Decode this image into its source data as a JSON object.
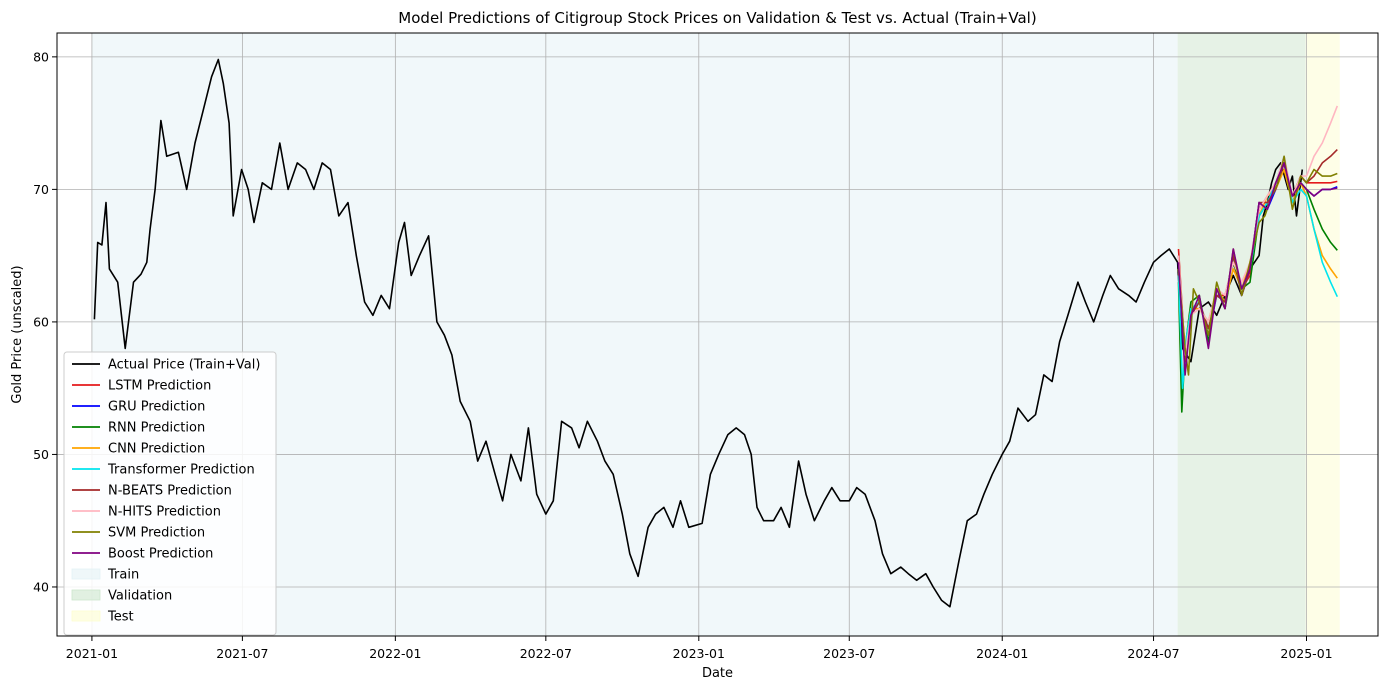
{
  "chart_data": {
    "type": "line",
    "title": "Model Predictions of Citigroup Stock Prices on Validation & Test vs. Actual (Train+Val)",
    "xlabel": "Date",
    "ylabel": "Gold Price (unscaled)",
    "xlim": [
      "2020-11-20",
      "2025-03-28"
    ],
    "ylim": [
      36.3,
      81.8
    ],
    "grid": true,
    "legend_position": "lower-left",
    "x_ticks": [
      "2021-01",
      "2021-07",
      "2022-01",
      "2022-07",
      "2023-01",
      "2023-07",
      "2024-01",
      "2024-07",
      "2025-01"
    ],
    "y_ticks": [
      40,
      50,
      60,
      70,
      80
    ],
    "regions": [
      {
        "name": "Train",
        "start": "2021-01-01",
        "end": "2024-07-30",
        "color": "#e4f2f5"
      },
      {
        "name": "Validation",
        "start": "2024-07-30",
        "end": "2024-12-31",
        "color": "#cde6cd"
      },
      {
        "name": "Test",
        "start": "2024-12-31",
        "end": "2025-02-10",
        "color": "#fdfdd0"
      }
    ],
    "series": [
      {
        "name": "Actual Price (Train+Val)",
        "color": "#000000",
        "x": [
          "2021-01-04",
          "2021-01-08",
          "2021-01-13",
          "2021-01-18",
          "2021-01-22",
          "2021-02-01",
          "2021-02-10",
          "2021-02-20",
          "2021-03-01",
          "2021-03-08",
          "2021-03-12",
          "2021-03-18",
          "2021-03-25",
          "2021-04-01",
          "2021-04-15",
          "2021-04-25",
          "2021-05-05",
          "2021-05-15",
          "2021-05-25",
          "2021-06-02",
          "2021-06-08",
          "2021-06-15",
          "2021-06-20",
          "2021-06-30",
          "2021-07-08",
          "2021-07-15",
          "2021-07-25",
          "2021-08-05",
          "2021-08-15",
          "2021-08-25",
          "2021-09-05",
          "2021-09-15",
          "2021-09-25",
          "2021-10-05",
          "2021-10-15",
          "2021-10-25",
          "2021-11-05",
          "2021-11-15",
          "2021-11-25",
          "2021-12-05",
          "2021-12-15",
          "2021-12-25",
          "2022-01-05",
          "2022-01-12",
          "2022-01-20",
          "2022-01-30",
          "2022-02-10",
          "2022-02-20",
          "2022-03-01",
          "2022-03-10",
          "2022-03-20",
          "2022-04-01",
          "2022-04-10",
          "2022-04-20",
          "2022-05-01",
          "2022-05-10",
          "2022-05-20",
          "2022-06-01",
          "2022-06-10",
          "2022-06-20",
          "2022-07-01",
          "2022-07-10",
          "2022-07-20",
          "2022-08-01",
          "2022-08-10",
          "2022-08-20",
          "2022-09-01",
          "2022-09-10",
          "2022-09-20",
          "2022-10-01",
          "2022-10-10",
          "2022-10-20",
          "2022-11-01",
          "2022-11-10",
          "2022-11-20",
          "2022-12-01",
          "2022-12-10",
          "2022-12-20",
          "2023-01-05",
          "2023-01-15",
          "2023-01-25",
          "2023-02-05",
          "2023-02-15",
          "2023-02-25",
          "2023-03-05",
          "2023-03-12",
          "2023-03-20",
          "2023-04-01",
          "2023-04-10",
          "2023-04-20",
          "2023-05-01",
          "2023-05-10",
          "2023-05-20",
          "2023-06-01",
          "2023-06-10",
          "2023-06-20",
          "2023-07-01",
          "2023-07-10",
          "2023-07-20",
          "2023-08-01",
          "2023-08-10",
          "2023-08-20",
          "2023-09-01",
          "2023-09-10",
          "2023-09-20",
          "2023-10-01",
          "2023-10-10",
          "2023-10-20",
          "2023-10-30",
          "2023-11-10",
          "2023-11-20",
          "2023-12-01",
          "2023-12-10",
          "2023-12-20",
          "2024-01-01",
          "2024-01-10",
          "2024-01-20",
          "2024-02-01",
          "2024-02-10",
          "2024-02-20",
          "2024-03-01",
          "2024-03-10",
          "2024-03-20",
          "2024-04-01",
          "2024-04-10",
          "2024-04-20",
          "2024-05-01",
          "2024-05-10",
          "2024-05-20",
          "2024-06-01",
          "2024-06-10",
          "2024-06-20",
          "2024-07-01",
          "2024-07-10",
          "2024-07-20",
          "2024-07-30",
          "2024-08-05",
          "2024-08-15",
          "2024-08-25",
          "2024-09-05",
          "2024-09-15",
          "2024-09-25",
          "2024-10-05",
          "2024-10-15",
          "2024-10-25",
          "2024-11-05",
          "2024-11-10",
          "2024-11-15",
          "2024-11-20",
          "2024-11-25",
          "2024-12-01",
          "2024-12-10",
          "2024-12-15",
          "2024-12-20",
          "2024-12-27"
        ],
        "values": [
          60.2,
          66.0,
          65.8,
          69.0,
          64.0,
          63.0,
          58.0,
          63.0,
          63.6,
          64.5,
          67.0,
          70.0,
          75.2,
          72.5,
          72.8,
          70.0,
          73.5,
          76.0,
          78.5,
          79.8,
          78.0,
          75.0,
          68.0,
          71.5,
          70.0,
          67.5,
          70.5,
          70.0,
          73.5,
          70.0,
          72.0,
          71.5,
          70.0,
          72.0,
          71.5,
          68.0,
          69.0,
          65.0,
          61.5,
          60.5,
          62.0,
          61.0,
          66.0,
          67.5,
          63.5,
          65.0,
          66.5,
          60.0,
          59.0,
          57.5,
          54.0,
          52.5,
          49.5,
          51.0,
          48.5,
          46.5,
          50.0,
          48.0,
          52.0,
          47.0,
          45.5,
          46.5,
          52.5,
          52.0,
          50.5,
          52.5,
          51.0,
          49.5,
          48.5,
          45.5,
          42.5,
          40.8,
          44.5,
          45.5,
          46.0,
          44.5,
          46.5,
          44.5,
          44.8,
          48.5,
          50.0,
          51.5,
          52.0,
          51.5,
          50.0,
          46.0,
          45.0,
          45.0,
          46.0,
          44.5,
          49.5,
          47.0,
          45.0,
          46.5,
          47.5,
          46.5,
          46.5,
          47.5,
          47.0,
          45.0,
          42.5,
          41.0,
          41.5,
          41.0,
          40.5,
          41.0,
          40.0,
          39.0,
          38.5,
          42.0,
          45.0,
          45.5,
          47.0,
          48.5,
          50.0,
          51.0,
          53.5,
          52.5,
          53.0,
          56.0,
          55.5,
          58.5,
          60.5,
          63.0,
          61.5,
          60.0,
          62.0,
          63.5,
          62.5,
          62.0,
          61.5,
          63.0,
          64.5,
          65.0,
          65.5,
          64.5,
          58.0,
          57.0,
          61.0,
          61.5,
          60.5,
          62.0,
          63.5,
          62.0,
          64.0,
          65.0,
          68.0,
          69.0,
          70.5,
          71.5,
          72.0,
          70.0,
          71.0,
          68.0,
          71.5
        ]
      },
      {
        "name": "LSTM Prediction",
        "color": "#e41a1c",
        "x": [
          "2024-07-31",
          "2024-08-08",
          "2024-08-15",
          "2024-08-25",
          "2024-09-05",
          "2024-09-15",
          "2024-09-25",
          "2024-10-05",
          "2024-10-15",
          "2024-10-25",
          "2024-11-05",
          "2024-11-15",
          "2024-11-25",
          "2024-12-05",
          "2024-12-15",
          "2024-12-25",
          "2025-01-01",
          "2025-01-10",
          "2025-01-20",
          "2025-01-30",
          "2025-02-07"
        ],
        "values": [
          65.5,
          57.5,
          61.0,
          61.0,
          60.0,
          62.0,
          62.0,
          64.5,
          62.5,
          63.5,
          68.5,
          69.5,
          70.5,
          72.0,
          69.5,
          71.0,
          70.5,
          70.5,
          70.5,
          70.5,
          70.6
        ]
      },
      {
        "name": "GRU Prediction",
        "color": "#0000ff",
        "x": [
          "2024-07-31",
          "2024-08-08",
          "2024-08-15",
          "2024-08-25",
          "2024-09-05",
          "2024-09-15",
          "2024-09-25",
          "2024-10-05",
          "2024-10-15",
          "2024-10-25",
          "2024-11-05",
          "2024-11-15",
          "2024-11-25",
          "2024-12-05",
          "2024-12-15",
          "2024-12-25",
          "2025-01-01",
          "2025-01-10",
          "2025-01-20",
          "2025-01-30",
          "2025-02-07"
        ],
        "values": [
          64.5,
          56.5,
          60.5,
          61.5,
          59.0,
          62.0,
          61.5,
          65.0,
          62.0,
          64.0,
          69.0,
          68.5,
          70.0,
          72.0,
          69.0,
          70.5,
          70.0,
          69.5,
          70.0,
          70.0,
          70.2
        ]
      },
      {
        "name": "RNN Prediction",
        "color": "#008000",
        "x": [
          "2024-07-31",
          "2024-08-04",
          "2024-08-08",
          "2024-08-15",
          "2024-08-25",
          "2024-09-05",
          "2024-09-15",
          "2024-09-25",
          "2024-10-05",
          "2024-10-15",
          "2024-10-25",
          "2024-11-05",
          "2024-11-15",
          "2024-11-25",
          "2024-12-05",
          "2024-12-15",
          "2024-12-25",
          "2025-01-01",
          "2025-01-10",
          "2025-01-20",
          "2025-01-30",
          "2025-02-07"
        ],
        "values": [
          63.0,
          53.2,
          58.0,
          61.5,
          62.0,
          58.5,
          62.5,
          61.0,
          64.5,
          62.5,
          63.0,
          68.0,
          69.0,
          70.5,
          72.0,
          69.0,
          70.5,
          70.0,
          68.5,
          67.0,
          66.0,
          65.4
        ]
      },
      {
        "name": "CNN Prediction",
        "color": "#ffa500",
        "x": [
          "2024-07-31",
          "2024-08-08",
          "2024-08-15",
          "2024-08-25",
          "2024-09-05",
          "2024-09-15",
          "2024-09-25",
          "2024-10-05",
          "2024-10-15",
          "2024-10-25",
          "2024-11-05",
          "2024-11-15",
          "2024-11-25",
          "2024-12-05",
          "2024-12-15",
          "2024-12-25",
          "2025-01-01",
          "2025-01-10",
          "2025-01-20",
          "2025-01-30",
          "2025-02-07"
        ],
        "values": [
          64.0,
          58.0,
          61.0,
          61.0,
          60.0,
          62.5,
          61.5,
          64.0,
          62.5,
          64.5,
          68.0,
          69.5,
          70.0,
          71.5,
          69.0,
          70.5,
          69.5,
          67.0,
          65.0,
          64.0,
          63.3
        ]
      },
      {
        "name": "Transformer Prediction",
        "color": "#00e5ee",
        "x": [
          "2024-07-31",
          "2024-08-05",
          "2024-08-10",
          "2024-08-15",
          "2024-08-25",
          "2024-09-05",
          "2024-09-15",
          "2024-09-25",
          "2024-10-05",
          "2024-10-15",
          "2024-10-25",
          "2024-11-05",
          "2024-11-15",
          "2024-11-25",
          "2024-12-05",
          "2024-12-15",
          "2024-12-25",
          "2025-01-01",
          "2025-01-10",
          "2025-01-20",
          "2025-01-30",
          "2025-02-07"
        ],
        "values": [
          63.5,
          55.0,
          59.0,
          61.0,
          61.5,
          59.5,
          62.0,
          61.5,
          65.0,
          62.5,
          64.0,
          68.0,
          69.0,
          70.5,
          72.5,
          69.0,
          70.0,
          69.5,
          67.0,
          64.5,
          63.0,
          61.9
        ]
      },
      {
        "name": "N-BEATS Prediction",
        "color": "#a52a2a",
        "x": [
          "2024-07-31",
          "2024-08-08",
          "2024-08-15",
          "2024-08-25",
          "2024-09-05",
          "2024-09-15",
          "2024-09-25",
          "2024-10-05",
          "2024-10-15",
          "2024-10-25",
          "2024-11-05",
          "2024-11-15",
          "2024-11-25",
          "2024-12-05",
          "2024-12-15",
          "2024-12-25",
          "2025-01-01",
          "2025-01-10",
          "2025-01-20",
          "2025-01-30",
          "2025-02-07"
        ],
        "values": [
          65.0,
          57.0,
          60.5,
          61.5,
          59.5,
          62.0,
          61.5,
          65.0,
          62.0,
          64.0,
          69.0,
          69.0,
          70.0,
          72.0,
          69.5,
          71.0,
          70.5,
          71.0,
          72.0,
          72.5,
          73.0
        ]
      },
      {
        "name": "N-HITS Prediction",
        "color": "#ffb6c1",
        "x": [
          "2024-07-31",
          "2024-08-08",
          "2024-08-15",
          "2024-08-25",
          "2024-09-05",
          "2024-09-15",
          "2024-09-25",
          "2024-10-05",
          "2024-10-15",
          "2024-10-25",
          "2024-11-05",
          "2024-11-15",
          "2024-11-25",
          "2024-12-05",
          "2024-12-15",
          "2024-12-25",
          "2025-01-01",
          "2025-01-10",
          "2025-01-20",
          "2025-01-30",
          "2025-02-07"
        ],
        "values": [
          65.0,
          57.5,
          60.5,
          61.0,
          60.0,
          62.5,
          62.0,
          64.5,
          63.0,
          64.5,
          68.5,
          69.5,
          70.5,
          72.5,
          69.5,
          71.0,
          71.0,
          72.5,
          73.5,
          75.0,
          76.3
        ]
      },
      {
        "name": "SVM Prediction",
        "color": "#808000",
        "x": [
          "2024-07-31",
          "2024-08-08",
          "2024-08-12",
          "2024-08-18",
          "2024-08-25",
          "2024-09-05",
          "2024-09-15",
          "2024-09-25",
          "2024-10-05",
          "2024-10-15",
          "2024-10-25",
          "2024-11-05",
          "2024-11-12",
          "2024-11-20",
          "2024-11-28",
          "2024-12-05",
          "2024-12-15",
          "2024-12-25",
          "2025-01-01",
          "2025-01-10",
          "2025-01-20",
          "2025-01-30",
          "2025-02-07"
        ],
        "values": [
          64.0,
          58.0,
          56.0,
          62.5,
          61.5,
          59.0,
          63.0,
          61.0,
          65.5,
          62.0,
          64.5,
          67.5,
          68.0,
          69.5,
          70.5,
          72.5,
          68.5,
          71.0,
          70.5,
          71.5,
          71.0,
          71.0,
          71.2
        ]
      },
      {
        "name": "Boost Prediction",
        "color": "#800080",
        "x": [
          "2024-07-31",
          "2024-08-08",
          "2024-08-15",
          "2024-08-25",
          "2024-09-05",
          "2024-09-15",
          "2024-09-25",
          "2024-10-05",
          "2024-10-15",
          "2024-10-25",
          "2024-11-05",
          "2024-11-15",
          "2024-11-25",
          "2024-12-05",
          "2024-12-15",
          "2024-12-25",
          "2025-01-01",
          "2025-01-10",
          "2025-01-20",
          "2025-01-30",
          "2025-02-07"
        ],
        "values": [
          64.5,
          56.0,
          60.5,
          62.0,
          58.0,
          62.5,
          61.0,
          65.5,
          62.5,
          64.0,
          69.0,
          68.5,
          70.5,
          72.0,
          69.5,
          70.5,
          70.0,
          69.5,
          70.0,
          70.0,
          70.1
        ]
      }
    ]
  }
}
